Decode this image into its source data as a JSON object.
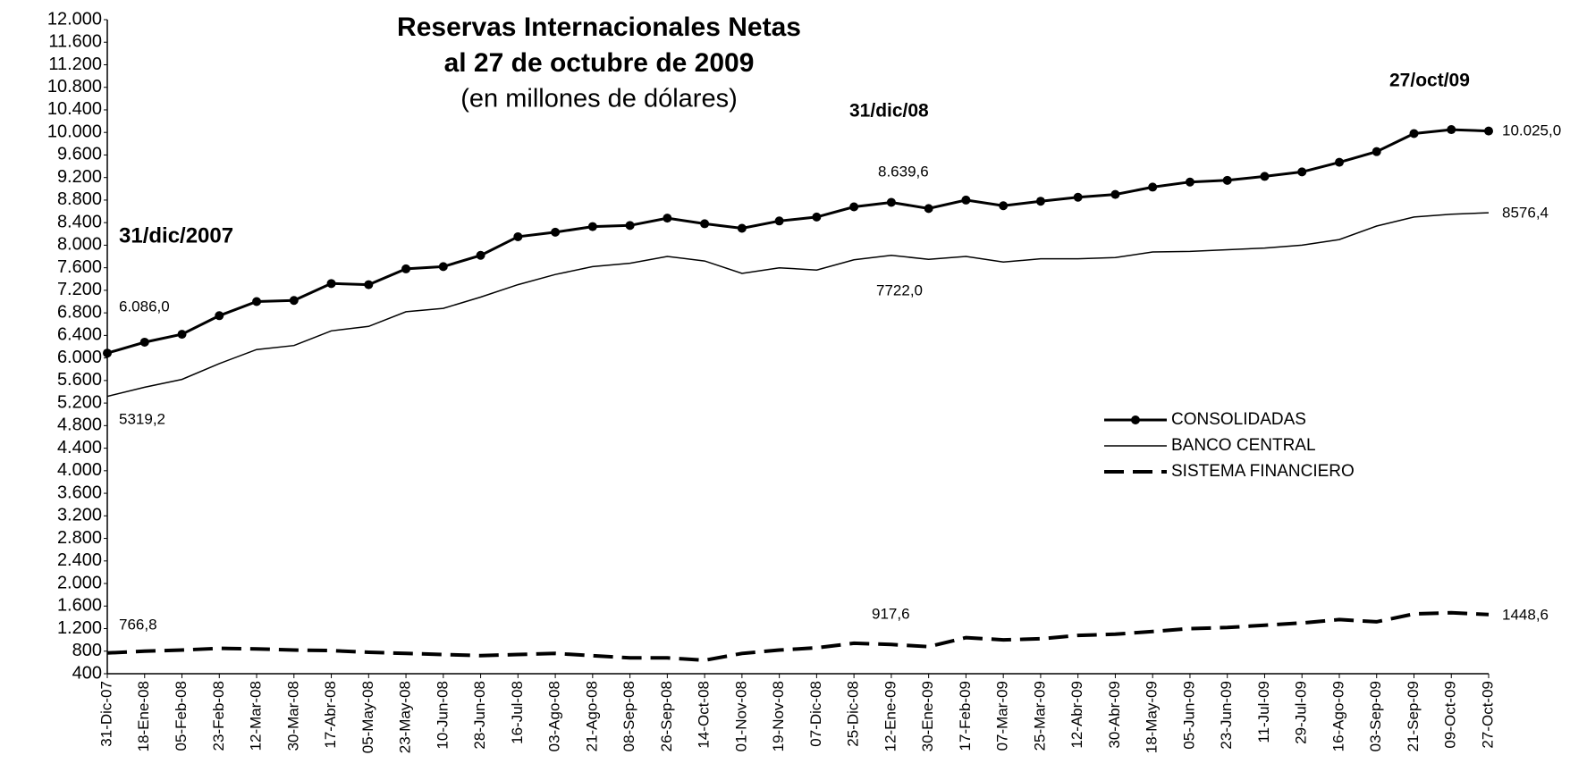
{
  "chart_data": {
    "type": "line",
    "title": "Reservas Internacionales Netas",
    "subtitle": "al 27 de octubre de 2009",
    "unit_label": "(en millones de dólares)",
    "annotations": [
      "31/dic/2007",
      "31/dic/08",
      "27/oct/09",
      "6.086,0",
      "5319,2",
      "766,8",
      "8.639,6",
      "7722,0",
      "917,6",
      "10.025,0",
      "8576,4",
      "1448,6"
    ],
    "categories": [
      "31-Dic-07",
      "18-Ene-08",
      "05-Feb-08",
      "23-Feb-08",
      "12-Mar-08",
      "30-Mar-08",
      "17-Abr-08",
      "05-May-08",
      "23-May-08",
      "10-Jun-08",
      "28-Jun-08",
      "16-Jul-08",
      "03-Ago-08",
      "21-Ago-08",
      "08-Sep-08",
      "26-Sep-08",
      "14-Oct-08",
      "01-Nov-08",
      "19-Nov-08",
      "07-Dic-08",
      "25-Dic-08",
      "12-Ene-09",
      "30-Ene-09",
      "17-Feb-09",
      "07-Mar-09",
      "25-Mar-09",
      "12-Abr-09",
      "30-Abr-09",
      "18-May-09",
      "05-Jun-09",
      "23-Jun-09",
      "11-Jul-09",
      "29-Jul-09",
      "16-Ago-09",
      "03-Sep-09",
      "21-Sep-09",
      "09-Oct-09",
      "27-Oct-09"
    ],
    "series": [
      {
        "name": "CONSOLIDADAS",
        "color": "#000000",
        "style": "line-markers",
        "values": [
          6086,
          6280,
          6420,
          6750,
          7000,
          7020,
          7320,
          7300,
          7580,
          7620,
          7820,
          8150,
          8230,
          8330,
          8350,
          8480,
          8380,
          8300,
          8430,
          8500,
          8680,
          8760,
          8650,
          8800,
          8700,
          8780,
          8850,
          8900,
          9030,
          9120,
          9150,
          9220,
          9300,
          9470,
          9660,
          9980,
          10050,
          10025
        ]
      },
      {
        "name": "BANCO CENTRAL",
        "color": "#000000",
        "style": "line",
        "values": [
          5319,
          5480,
          5620,
          5900,
          6150,
          6220,
          6480,
          6560,
          6820,
          6880,
          7080,
          7300,
          7480,
          7620,
          7680,
          7800,
          7720,
          7500,
          7600,
          7560,
          7740,
          7820,
          7750,
          7800,
          7700,
          7760,
          7760,
          7780,
          7880,
          7890,
          7920,
          7950,
          8000,
          8100,
          8340,
          8500,
          8550,
          8576
        ]
      },
      {
        "name": "SISTEMA FINANCIERO",
        "color": "#000000",
        "style": "dashed",
        "values": [
          767,
          800,
          820,
          850,
          840,
          820,
          810,
          780,
          760,
          740,
          720,
          740,
          760,
          720,
          680,
          680,
          640,
          760,
          820,
          860,
          940,
          918,
          880,
          1040,
          1000,
          1020,
          1080,
          1100,
          1150,
          1200,
          1220,
          1260,
          1300,
          1360,
          1320,
          1460,
          1480,
          1449
        ]
      }
    ],
    "ylim": [
      400,
      12000
    ],
    "yticks": [
      400,
      800,
      {
        "value": 1200,
        "label": "1.200"
      },
      {
        "value": 1600,
        "label": "1.600"
      },
      {
        "value": 2000,
        "label": "2.000"
      },
      {
        "value": 2400,
        "label": "2.400"
      },
      {
        "value": 2800,
        "label": "2.800"
      },
      {
        "value": 3200,
        "label": "3.200"
      },
      {
        "value": 3600,
        "label": "3.600"
      },
      {
        "value": 4000,
        "label": "4.000"
      },
      {
        "value": 4400,
        "label": "4.400"
      },
      {
        "value": 4800,
        "label": "4.800"
      },
      {
        "value": 5200,
        "label": "5.200"
      },
      {
        "value": 5600,
        "label": "5.600"
      },
      {
        "value": 6000,
        "label": "6.000"
      },
      {
        "value": 6400,
        "label": "6.400"
      },
      {
        "value": 6800,
        "label": "6.800"
      },
      {
        "value": 7200,
        "label": "7.200"
      },
      {
        "value": 7600,
        "label": "7.600"
      },
      {
        "value": 8000,
        "label": "8.000"
      },
      {
        "value": 8400,
        "label": "8.400"
      },
      {
        "value": 8800,
        "label": "8.800"
      },
      {
        "value": 9200,
        "label": "9.200"
      },
      {
        "value": 9600,
        "label": "9.600"
      },
      {
        "value": 10000,
        "label": "10.000"
      },
      {
        "value": 10400,
        "label": "10.400"
      },
      {
        "value": 10800,
        "label": "10.800"
      },
      {
        "value": 11200,
        "label": "11.200"
      },
      {
        "value": 11600,
        "label": "11.600"
      },
      {
        "value": 12000,
        "label": "12.000"
      }
    ],
    "grid": false,
    "legend": "right"
  }
}
